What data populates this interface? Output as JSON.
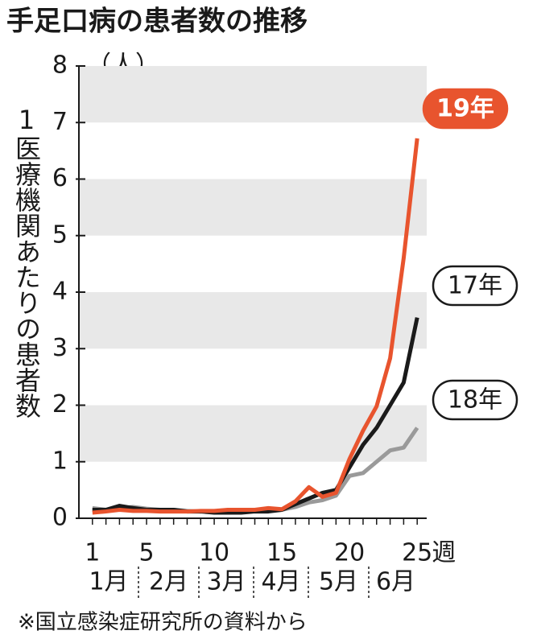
{
  "chart_data": {
    "type": "line",
    "title": "手足口病の患者数の推移",
    "y_label": "1医療機関あたりの患者数",
    "y_unit": "（人）",
    "x_unit": "週",
    "source": "※国立感染症研究所の資料から",
    "x": [
      1,
      2,
      3,
      4,
      5,
      6,
      7,
      8,
      9,
      10,
      11,
      12,
      13,
      14,
      15,
      16,
      17,
      18,
      19,
      20,
      21,
      22,
      23,
      24,
      25
    ],
    "xlim": [
      0,
      26
    ],
    "xticks": [
      1,
      5,
      10,
      15,
      20,
      25
    ],
    "ylim": [
      0,
      8
    ],
    "yticks": [
      0,
      1,
      2,
      3,
      4,
      5,
      6,
      7,
      8
    ],
    "months": [
      "1月",
      "2月",
      "3月",
      "4月",
      "5月",
      "6月"
    ],
    "series": [
      {
        "name": "18年",
        "color": "#9a9a9a",
        "values": [
          0.18,
          0.15,
          0.18,
          0.2,
          0.17,
          0.15,
          0.15,
          0.13,
          0.12,
          0.12,
          0.12,
          0.12,
          0.13,
          0.14,
          0.15,
          0.2,
          0.28,
          0.32,
          0.4,
          0.75,
          0.8,
          1.0,
          1.2,
          1.25,
          1.6
        ]
      },
      {
        "name": "17年",
        "color": "#1a1a1a",
        "values": [
          0.15,
          0.15,
          0.22,
          0.18,
          0.15,
          0.15,
          0.15,
          0.12,
          0.12,
          0.1,
          0.1,
          0.1,
          0.12,
          0.12,
          0.15,
          0.25,
          0.35,
          0.45,
          0.5,
          0.9,
          1.3,
          1.6,
          2.0,
          2.4,
          3.55
        ]
      },
      {
        "name": "19年",
        "color": "#e8542e",
        "values": [
          0.1,
          0.12,
          0.15,
          0.13,
          0.13,
          0.12,
          0.12,
          0.12,
          0.13,
          0.13,
          0.15,
          0.15,
          0.15,
          0.18,
          0.16,
          0.3,
          0.55,
          0.38,
          0.45,
          1.05,
          1.55,
          1.98,
          2.83,
          4.6,
          6.72
        ]
      }
    ]
  }
}
